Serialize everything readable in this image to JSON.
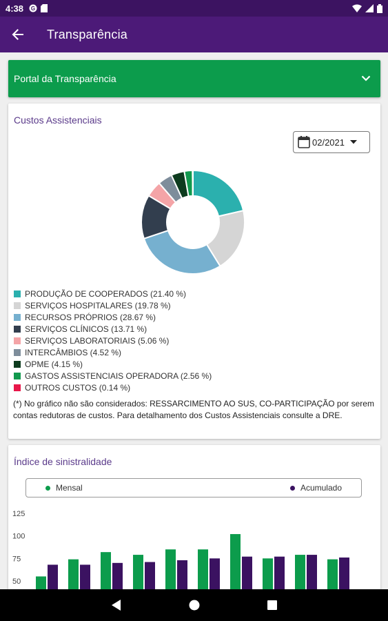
{
  "status_bar": {
    "time": "4:38",
    "left_icons": [
      "google-icon",
      "sim-icon"
    ],
    "right_icons": [
      "wifi-icon",
      "signal-icon",
      "battery-icon"
    ]
  },
  "app_bar": {
    "title": "Transparência",
    "back_icon": "arrow-back-icon"
  },
  "portal": {
    "title": "Portal da Transparência",
    "expand_icon": "chevron-down-icon"
  },
  "costs_card": {
    "title": "Custos Assistenciais",
    "date_selector": {
      "value": "02/2021",
      "icon": "calendar-icon"
    },
    "legend": [
      {
        "label": "PRODUÇÃO DE COOPERADOS (21.40 %)",
        "color": "#2bb0ae"
      },
      {
        "label": "SERVIÇOS HOSPITALARES (19.78 %)",
        "color": "#d5d5d5"
      },
      {
        "label": "RECURSOS PRÓPRIOS (28.67 %)",
        "color": "#76b0cf"
      },
      {
        "label": "SERVIÇOS CLÍNICOS (13.71 %)",
        "color": "#323e4e"
      },
      {
        "label": "SERVIÇOS LABORATORIAIS (5.06 %)",
        "color": "#f4a4a7"
      },
      {
        "label": "INTERCÂMBIOS (4.52 %)",
        "color": "#7e8d9b"
      },
      {
        "label": "OPME (4.15 %)",
        "color": "#0d3b1e"
      },
      {
        "label": "GASTOS ASSISTENCIAIS OPERADORA (2.56 %)",
        "color": "#11994e"
      },
      {
        "label": "OUTROS CUSTOS (0.14 %)",
        "color": "#e8174a"
      }
    ],
    "note": "(*) No gráfico não são considerados: RESSARCIMENTO AO SUS, CO-PARTICIPAÇÃO por serem contas redutoras de custos. Para detalhamento dos Custos Assistenciais consulte a DRE."
  },
  "loss_card": {
    "title": "Índice de sinistralidade"
  },
  "chart_data": [
    {
      "type": "pie",
      "categories": [
        "PRODUÇÃO DE COOPERADOS",
        "SERVIÇOS HOSPITALARES",
        "RECURSOS PRÓPRIOS",
        "SERVIÇOS CLÍNICOS",
        "SERVIÇOS LABORATORIAIS",
        "INTERCÂMBIOS",
        "OPME",
        "GASTOS ASSISTENCIAIS OPERADORA",
        "OUTROS CUSTOS"
      ],
      "values": [
        21.4,
        19.78,
        28.67,
        13.71,
        5.06,
        4.52,
        4.15,
        2.56,
        0.14
      ],
      "colors": [
        "#2bb0ae",
        "#d5d5d5",
        "#76b0cf",
        "#323e4e",
        "#f4a4a7",
        "#7e8d9b",
        "#0d3b1e",
        "#11994e",
        "#e8174a"
      ],
      "legend": "bottom"
    },
    {
      "type": "bar",
      "series": [
        {
          "name": "Mensal",
          "color": "#0c9c4c",
          "values": [
            55,
            74,
            82,
            79,
            85,
            85,
            102,
            75,
            79,
            74
          ]
        },
        {
          "name": "Acumulado",
          "color": "#3b1261",
          "values": [
            68,
            68,
            70,
            71,
            73,
            75,
            77,
            77,
            79,
            76
          ]
        }
      ],
      "yticks": [
        "125",
        "100",
        "75",
        "50"
      ],
      "ylim": [
        40,
        125
      ],
      "legend": "top"
    }
  ],
  "nav_bar": {
    "icons": [
      "back-triangle-icon",
      "home-circle-icon",
      "recents-square-icon"
    ]
  }
}
